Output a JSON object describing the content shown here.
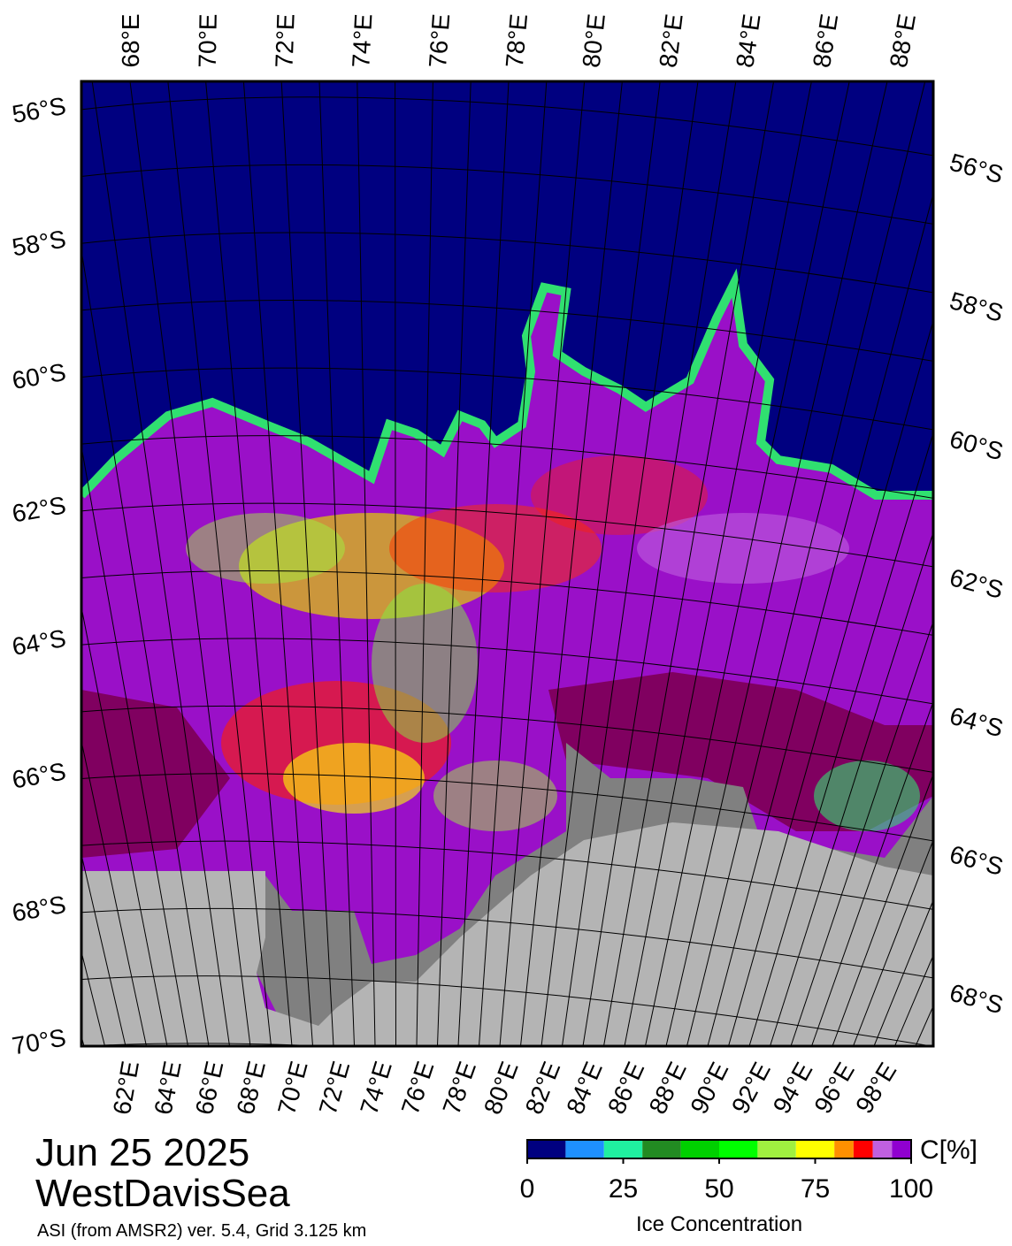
{
  "map": {
    "lat_labels_left": [
      "56°S",
      "58°S",
      "60°S",
      "62°S",
      "64°S",
      "66°S",
      "68°S",
      "70°S"
    ],
    "lat_labels_right": [
      "56°S",
      "58°S",
      "60°S",
      "62°S",
      "64°S",
      "66°S",
      "68°S"
    ],
    "lon_labels_top": [
      "68°E",
      "70°E",
      "72°E",
      "74°E",
      "76°E",
      "78°E",
      "80°E",
      "82°E",
      "84°E",
      "86°E",
      "88°E"
    ],
    "lon_labels_bottom": [
      "62°E",
      "64°E",
      "66°E",
      "68°E",
      "70°E",
      "72°E",
      "74°E",
      "76°E",
      "78°E",
      "80°E",
      "82°E",
      "84°E",
      "86°E",
      "88°E",
      "90°E",
      "92°E",
      "94°E",
      "96°E",
      "98°E"
    ]
  },
  "date": "Jun 25 2025",
  "region": "WestDavisSea",
  "source": "ASI (from AMSR2) ver. 5.4,  Grid 3.125 km",
  "colorbar": {
    "unit": "C[%]",
    "label": "Ice Concentration",
    "lim": [
      0,
      100
    ],
    "ticks": [
      0,
      25,
      50,
      75,
      100
    ],
    "bins": [
      0,
      10,
      20,
      30,
      40,
      50,
      60,
      70,
      80,
      85,
      90,
      95,
      100
    ],
    "colors": [
      "#000080",
      "#1e90ff",
      "#20f0a0",
      "#228b22",
      "#00d000",
      "#00ff00",
      "#a0f040",
      "#ffff00",
      "#ff9000",
      "#ff0000",
      "#c060e0",
      "#9000d0"
    ]
  }
}
